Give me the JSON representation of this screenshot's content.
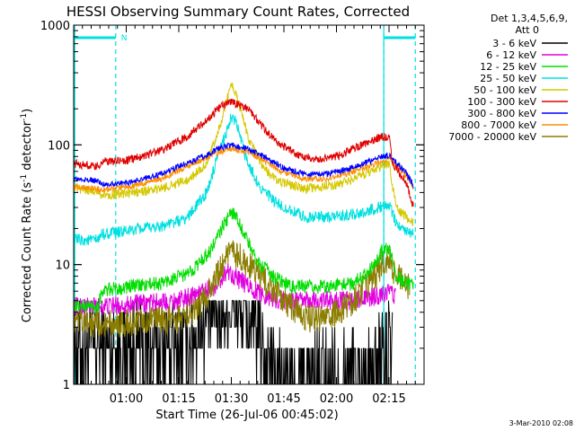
{
  "chart_data": {
    "type": "line",
    "title": "HESSI Observing Summary Count Rates, Corrected",
    "xlabel": "Start Time (26-Jul-06 00:45:02)",
    "ylabel_main": "Corrected Count Rate (s",
    "ylabel_sup1": "-1",
    "ylabel_mid": " detector",
    "ylabel_sup2": "-1",
    "ylabel_end": ")",
    "y_scale": "log",
    "ylim": [
      1,
      1000
    ],
    "xlim_minutes": [
      0,
      100
    ],
    "x_ticks": [
      {
        "m": 15,
        "label": "01:00"
      },
      {
        "m": 30,
        "label": "01:15"
      },
      {
        "m": 45,
        "label": "01:30"
      },
      {
        "m": 60,
        "label": "01:45"
      },
      {
        "m": 75,
        "label": "02:00"
      },
      {
        "m": 90,
        "label": "02:15"
      }
    ],
    "y_ticks": [
      {
        "v": 1,
        "label": "1"
      },
      {
        "v": 10,
        "label": "10"
      },
      {
        "v": 100,
        "label": "100"
      },
      {
        "v": 1000,
        "label": "1000"
      }
    ],
    "legend_header": [
      "Det 1,3,4,5,6,9,",
      "Att 0"
    ],
    "legend_position": "outside-right",
    "timestamp": "3-Mar-2010 02:08",
    "flag_letter": "N",
    "night_lines_minutes": [
      12,
      88.5,
      97.5
    ],
    "flag_segments": [
      {
        "m0": 0,
        "m1": 12,
        "letter": true
      },
      {
        "m0": 88.5,
        "m1": 97.5,
        "letter": false
      }
    ],
    "series": [
      {
        "name": "3 - 6 keV",
        "color": "#000000",
        "noise": 0.38,
        "points": [
          [
            0,
            2
          ],
          [
            20,
            2
          ],
          [
            30,
            2
          ],
          [
            34,
            2.5
          ],
          [
            38,
            3.5
          ],
          [
            42,
            4.5
          ],
          [
            47,
            4
          ],
          [
            51,
            3
          ],
          [
            55,
            1.8
          ],
          [
            58,
            1.2
          ],
          [
            63,
            1
          ],
          [
            70,
            1.2
          ],
          [
            75,
            1.3
          ],
          [
            80,
            1.3
          ],
          [
            85,
            1.3
          ],
          [
            88,
            2
          ],
          [
            91,
            2
          ]
        ]
      },
      {
        "name": "6 - 12 keV",
        "color": "#e000e0",
        "noise": 0.08,
        "points": [
          [
            0,
            4.5
          ],
          [
            10,
            4.5
          ],
          [
            30,
            5
          ],
          [
            40,
            6.5
          ],
          [
            44,
            9
          ],
          [
            47,
            7.5
          ],
          [
            52,
            6
          ],
          [
            58,
            5
          ],
          [
            68,
            5
          ],
          [
            80,
            5
          ],
          [
            87,
            5.5
          ],
          [
            90,
            6
          ],
          [
            92,
            5.5
          ]
        ]
      },
      {
        "name": "12 - 25 keV",
        "color": "#00dd00",
        "noise": 0.06,
        "points": [
          [
            0,
            4.5
          ],
          [
            7,
            4.5
          ],
          [
            8,
            6
          ],
          [
            15,
            6.5
          ],
          [
            25,
            7
          ],
          [
            33,
            8.5
          ],
          [
            39,
            13
          ],
          [
            43,
            22
          ],
          [
            45.5,
            28
          ],
          [
            48,
            20
          ],
          [
            52,
            11
          ],
          [
            57,
            8
          ],
          [
            62,
            6.5
          ],
          [
            70,
            6.5
          ],
          [
            80,
            7
          ],
          [
            86,
            10
          ],
          [
            88,
            13
          ],
          [
            90,
            14
          ],
          [
            92,
            8
          ],
          [
            97,
            6.5
          ]
        ]
      },
      {
        "name": "25 - 50 keV",
        "color": "#00e0e0",
        "noise": 0.05,
        "points": [
          [
            0,
            16
          ],
          [
            7,
            16
          ],
          [
            8,
            18
          ],
          [
            15,
            19
          ],
          [
            25,
            21
          ],
          [
            32,
            24
          ],
          [
            38,
            40
          ],
          [
            42,
            95
          ],
          [
            45,
            170
          ],
          [
            46.5,
            150
          ],
          [
            49,
            80
          ],
          [
            53,
            45
          ],
          [
            58,
            32
          ],
          [
            66,
            25
          ],
          [
            75,
            25
          ],
          [
            82,
            27
          ],
          [
            87,
            30
          ],
          [
            90,
            32
          ],
          [
            92,
            22
          ],
          [
            97,
            18
          ]
        ]
      },
      {
        "name": "50 - 100 keV",
        "color": "#d4c800",
        "noise": 0.04,
        "points": [
          [
            0,
            43
          ],
          [
            7,
            41
          ],
          [
            8,
            38
          ],
          [
            15,
            39
          ],
          [
            25,
            43
          ],
          [
            33,
            52
          ],
          [
            38,
            70
          ],
          [
            42,
            150
          ],
          [
            45,
            330
          ],
          [
            47,
            230
          ],
          [
            50,
            110
          ],
          [
            54,
            65
          ],
          [
            58,
            50
          ],
          [
            66,
            43
          ],
          [
            75,
            46
          ],
          [
            82,
            55
          ],
          [
            87,
            65
          ],
          [
            90,
            70
          ],
          [
            92,
            30
          ],
          [
            95,
            25
          ],
          [
            97,
            22
          ]
        ]
      },
      {
        "name": "100 - 300 keV",
        "color": "#e00000",
        "noise": 0.035,
        "points": [
          [
            0,
            70
          ],
          [
            7,
            65
          ],
          [
            8,
            72
          ],
          [
            15,
            74
          ],
          [
            25,
            90
          ],
          [
            32,
            115
          ],
          [
            38,
            160
          ],
          [
            42,
            210
          ],
          [
            45,
            230
          ],
          [
            50,
            200
          ],
          [
            54,
            140
          ],
          [
            58,
            105
          ],
          [
            64,
            82
          ],
          [
            70,
            75
          ],
          [
            76,
            82
          ],
          [
            82,
            100
          ],
          [
            87,
            115
          ],
          [
            90,
            118
          ],
          [
            91,
            70
          ],
          [
            95,
            48
          ],
          [
            97,
            30
          ]
        ]
      },
      {
        "name": "300 - 800 keV",
        "color": "#0000ff",
        "noise": 0.025,
        "points": [
          [
            0,
            52
          ],
          [
            7,
            50
          ],
          [
            8,
            47
          ],
          [
            15,
            48
          ],
          [
            25,
            57
          ],
          [
            32,
            70
          ],
          [
            38,
            82
          ],
          [
            42,
            95
          ],
          [
            45,
            100
          ],
          [
            50,
            92
          ],
          [
            55,
            78
          ],
          [
            60,
            64
          ],
          [
            66,
            57
          ],
          [
            72,
            57
          ],
          [
            78,
            62
          ],
          [
            84,
            72
          ],
          [
            88,
            80
          ],
          [
            90,
            82
          ],
          [
            95,
            58
          ],
          [
            97,
            45
          ]
        ]
      },
      {
        "name": "800 - 7000 keV",
        "color": "#ff8c00",
        "noise": 0.025,
        "points": [
          [
            0,
            45
          ],
          [
            7,
            43
          ],
          [
            8,
            42
          ],
          [
            15,
            44
          ],
          [
            25,
            52
          ],
          [
            32,
            65
          ],
          [
            38,
            78
          ],
          [
            42,
            88
          ],
          [
            45,
            92
          ],
          [
            50,
            86
          ],
          [
            55,
            72
          ],
          [
            60,
            58
          ],
          [
            66,
            52
          ],
          [
            72,
            52
          ],
          [
            78,
            57
          ],
          [
            84,
            66
          ],
          [
            88,
            73
          ],
          [
            90,
            75
          ],
          [
            95,
            55
          ],
          [
            97,
            42
          ]
        ]
      },
      {
        "name": "7000 - 20000 keV",
        "color": "#8b7d00",
        "noise": 0.12,
        "points": [
          [
            0,
            3.2
          ],
          [
            10,
            3.2
          ],
          [
            20,
            3.3
          ],
          [
            30,
            3.5
          ],
          [
            36,
            4.5
          ],
          [
            40,
            7
          ],
          [
            43,
            11
          ],
          [
            46,
            12.5
          ],
          [
            50,
            10
          ],
          [
            55,
            7
          ],
          [
            60,
            5
          ],
          [
            66,
            3.5
          ],
          [
            72,
            3.5
          ],
          [
            80,
            5
          ],
          [
            86,
            8
          ],
          [
            88,
            10
          ],
          [
            90,
            11
          ],
          [
            92,
            8
          ],
          [
            96,
            6.5
          ]
        ]
      }
    ]
  }
}
